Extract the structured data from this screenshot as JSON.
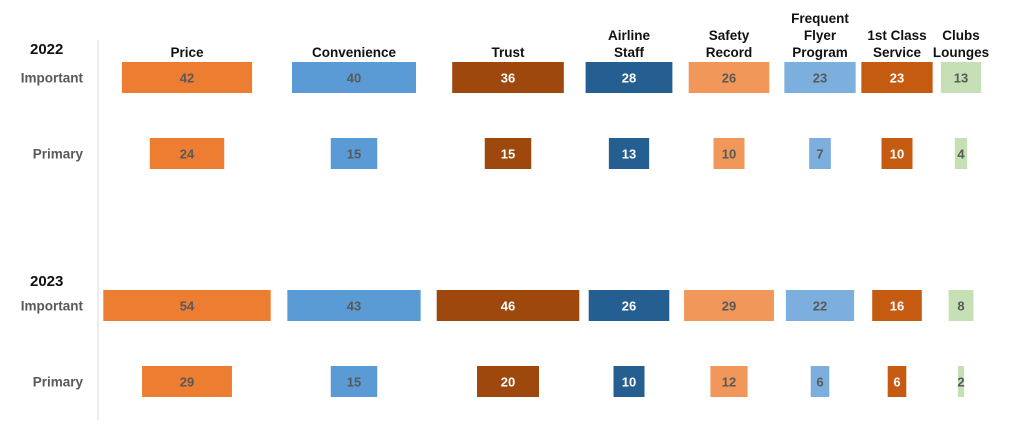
{
  "chart_data": {
    "type": "bar",
    "categories": [
      [
        "Price"
      ],
      [
        "Convenience"
      ],
      [
        "Trust"
      ],
      [
        "Airline",
        "Staff"
      ],
      [
        "Safety",
        "Record"
      ],
      [
        "Frequent",
        "Flyer",
        "Program"
      ],
      [
        "1st Class",
        "Service"
      ],
      [
        "Clubs",
        "Lounges"
      ]
    ],
    "colors": [
      "#ED7D31",
      "#5B9BD5",
      "#9E480E",
      "#255E91",
      "#F1975A",
      "#7CAFDD",
      "#C55A11",
      "#C5E0B4"
    ],
    "label_colors": [
      "#595959",
      "#595959",
      "#ffffff",
      "#ffffff",
      "#595959",
      "#595959",
      "#ffffff",
      "#595959"
    ],
    "groups": [
      {
        "year": "2022",
        "rows": [
          {
            "label": "Important",
            "values": [
              42,
              40,
              36,
              28,
              26,
              23,
              23,
              13
            ]
          },
          {
            "label": "Primary",
            "values": [
              24,
              15,
              15,
              13,
              10,
              7,
              10,
              4
            ]
          }
        ]
      },
      {
        "year": "2023",
        "rows": [
          {
            "label": "Important",
            "values": [
              54,
              43,
              46,
              26,
              29,
              22,
              16,
              8
            ]
          },
          {
            "label": "Primary",
            "values": [
              29,
              15,
              20,
              10,
              12,
              6,
              6,
              2
            ]
          }
        ]
      }
    ]
  }
}
